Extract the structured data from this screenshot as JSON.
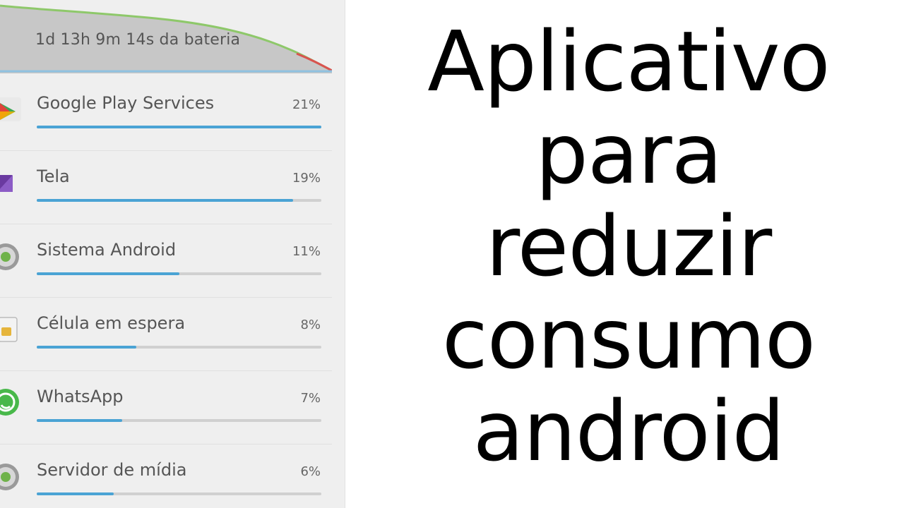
{
  "battery": {
    "remaining_label": "1d 13h 9m 14s da bateria"
  },
  "apps": [
    {
      "name": "Google Play Services",
      "percent_label": "21%",
      "fill": 1.0,
      "icon": "google-play-icon"
    },
    {
      "name": "Tela",
      "percent_label": "19%",
      "fill": 0.9,
      "icon": "screen-icon"
    },
    {
      "name": "Sistema Android",
      "percent_label": "11%",
      "fill": 0.5,
      "icon": "android-system-icon"
    },
    {
      "name": "Célula em espera",
      "percent_label": "8%",
      "fill": 0.35,
      "icon": "sim-card-icon"
    },
    {
      "name": "WhatsApp",
      "percent_label": "7%",
      "fill": 0.3,
      "icon": "whatsapp-icon"
    },
    {
      "name": "Servidor de mídia",
      "percent_label": "6%",
      "fill": 0.27,
      "icon": "media-server-icon"
    }
  ],
  "headline": {
    "line1": "Aplicativo",
    "line2": "para",
    "line3": "reduzir",
    "line4": "consumo",
    "line5": "android"
  },
  "colors": {
    "bar_fill": "#4aa3d4",
    "graph_line": "#8ec86a",
    "graph_area": "#c9c9c9"
  }
}
